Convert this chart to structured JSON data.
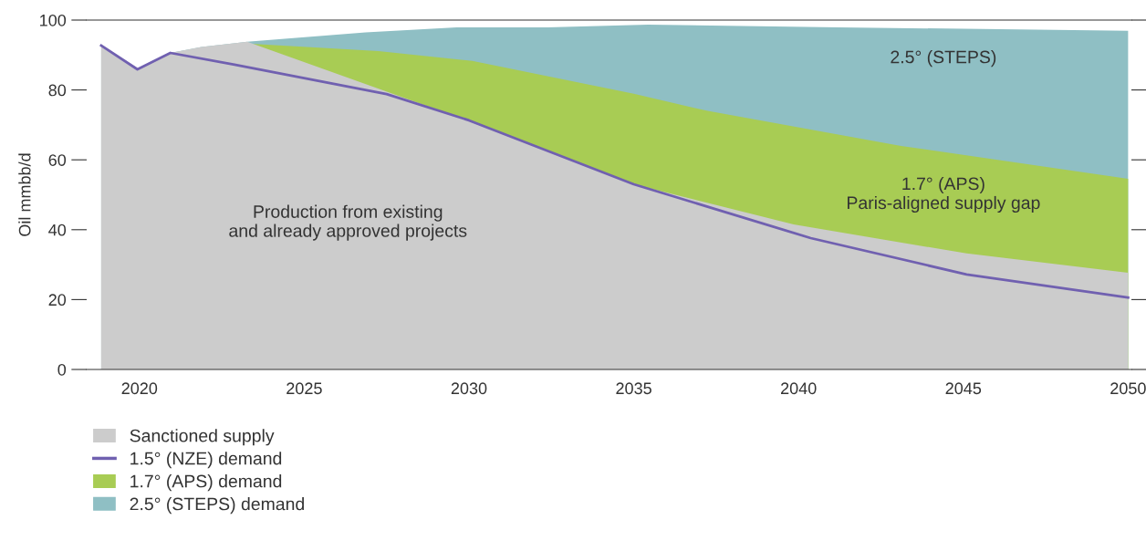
{
  "chart_data": {
    "type": "area",
    "ylabel": "Oil mmbb/d",
    "xlim": [
      2018.4,
      2050.1
    ],
    "xticks": [
      2020,
      2025,
      2030,
      2035,
      2040,
      2045,
      2050
    ],
    "ylim": [
      0,
      100
    ],
    "yticks": [
      0,
      20,
      40,
      60,
      80,
      100
    ],
    "grid": false,
    "legend": "bottom left",
    "series": [
      {
        "name": "Sanctioned supply",
        "color": "#cccccc",
        "x": [
          2018.84,
          2019.94,
          2020.94,
          2021.88,
          2023.27,
          2029.94,
          2035.0,
          2039.85,
          2045.1,
          2050
        ],
        "values": [
          92.7,
          85.9,
          90.6,
          92.3,
          93.8,
          71.3,
          53.0,
          41.5,
          33.2,
          27.7
        ]
      },
      {
        "name": "1.5° (NZE) demand",
        "type": "line",
        "color": "#7060b0",
        "x": [
          2018.84,
          2019.94,
          2020.94,
          2022.85,
          2027.5,
          2030.0,
          2035.0,
          2040.37,
          2045.1,
          2050
        ],
        "values": [
          92.7,
          85.9,
          90.6,
          87.3,
          78.8,
          71.3,
          53.0,
          37.6,
          27.2,
          20.6
        ]
      },
      {
        "name": "1.7° (APS) demand",
        "color": "#a8cc54",
        "x": [
          2023.27,
          2027.25,
          2030.1,
          2035.0,
          2037.24,
          2043.11,
          2050
        ],
        "values": [
          93.3,
          91.1,
          88.3,
          78.9,
          74.0,
          64.0,
          54.6
        ]
      },
      {
        "name": "2.5° (STEPS) demand",
        "color": "#8fbfc4",
        "x": [
          2018.84,
          2019.94,
          2020.94,
          2021.88,
          2023.27,
          2026.86,
          2029.63,
          2032.4,
          2035.44,
          2040.7,
          2050
        ],
        "values": [
          92.7,
          85.9,
          90.6,
          92.3,
          93.8,
          96.5,
          97.9,
          97.9,
          98.7,
          98,
          96.9
        ]
      }
    ],
    "annotations": [
      "Production from existing\nand already approved projects",
      "2.5° (STEPS)",
      "1.7° (APS)\nParis-aligned supply gap"
    ]
  }
}
